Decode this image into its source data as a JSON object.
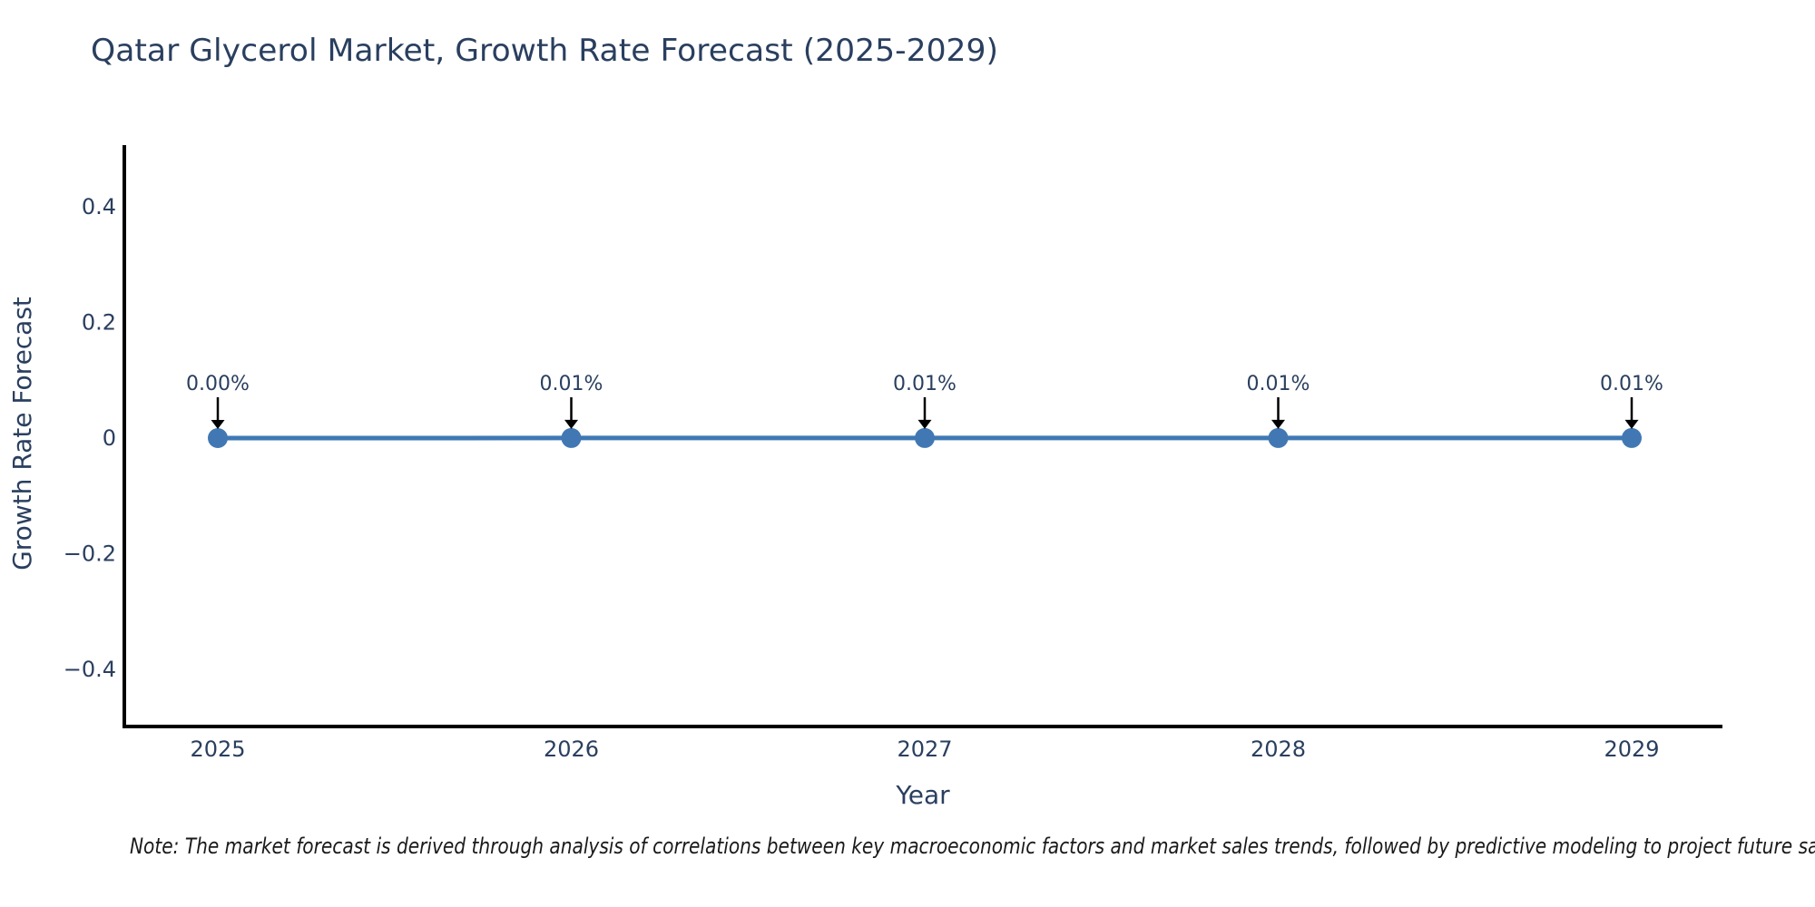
{
  "page": {
    "background": "#ffffff"
  },
  "chart_data": {
    "type": "line",
    "title": "Qatar Glycerol Market, Growth Rate Forecast (2025-2029)",
    "xlabel": "Year",
    "ylabel": "Growth Rate Forecast",
    "x": [
      2025,
      2026,
      2027,
      2028,
      2029
    ],
    "xtick_labels": [
      "2025",
      "2026",
      "2027",
      "2028",
      "2029"
    ],
    "y": [
      0.0,
      0.0001,
      0.0001,
      0.0001,
      0.0001
    ],
    "point_labels": [
      "0.00%",
      "0.01%",
      "0.01%",
      "0.01%",
      "0.01%"
    ],
    "ytick_values": [
      0.4,
      0.2,
      0,
      -0.2,
      -0.4
    ],
    "ytick_labels": [
      "0.4",
      "0.2",
      "0",
      "−0.2",
      "−0.4"
    ],
    "ylim": [
      -0.5,
      0.51
    ],
    "grid": false,
    "legend": "none",
    "annotation_style": "down-arrow",
    "colors": {
      "series": "#3e79b4",
      "marker": "#4178b3",
      "axis": "#000000",
      "text": "#2a3f5f",
      "annotation_arrow": "#000000",
      "note_text": "#1a1a1a"
    }
  },
  "footnote": "Note: The market forecast is derived through analysis of correlations between key macroeconomic factors and market sales trends, followed by predictive modeling to project future sal"
}
